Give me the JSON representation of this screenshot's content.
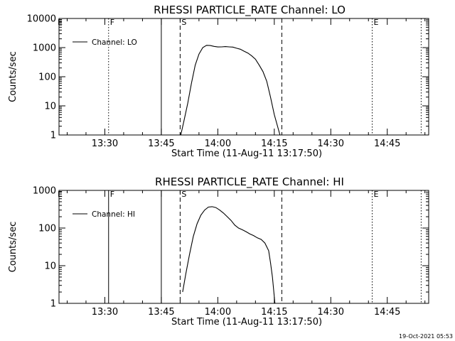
{
  "chart_data": [
    {
      "type": "line",
      "title": "RHESSI PARTICLE_RATE Channel: LO",
      "xlabel": "Start Time (11-Aug-11 13:17:50)",
      "ylabel": "Counts/sec",
      "yscale": "log",
      "xlim": [
        "13:17:50",
        "14:56:00"
      ],
      "ylim": [
        1,
        10000
      ],
      "x_ticks": [
        "13:30",
        "13:45",
        "14:00",
        "14:15",
        "14:30",
        "14:45"
      ],
      "y_ticks": [
        "1",
        "10",
        "100",
        "1000",
        "10000"
      ],
      "legend": {
        "entries": [
          "Channel: LO"
        ],
        "placement": "top-left"
      },
      "markers": [
        {
          "label": "F",
          "time": "13:31:00",
          "style": "dotted"
        },
        {
          "label": "",
          "time": "13:45:00",
          "style": "solid"
        },
        {
          "label": "S",
          "time": "13:50:00",
          "style": "dashed"
        },
        {
          "label": "",
          "time": "14:17:00",
          "style": "dashed"
        },
        {
          "label": "E",
          "time": "14:41:00",
          "style": "dotted"
        },
        {
          "label": "",
          "time": "14:54:00",
          "style": "dotted"
        }
      ],
      "series": [
        {
          "name": "Channel: LO",
          "x": [
            "13:50:10",
            "13:51:00",
            "13:52:00",
            "13:53:00",
            "13:54:00",
            "13:55:00",
            "13:56:00",
            "13:57:00",
            "13:58:00",
            "13:59:00",
            "14:00:00",
            "14:01:00",
            "14:02:00",
            "14:03:00",
            "14:04:00",
            "14:05:00",
            "14:06:00",
            "14:07:00",
            "14:08:00",
            "14:09:00",
            "14:10:00",
            "14:11:00",
            "14:12:00",
            "14:13:00",
            "14:14:00",
            "14:15:00",
            "14:16:30"
          ],
          "y": [
            1,
            3,
            12,
            60,
            250,
            600,
            1000,
            1200,
            1180,
            1100,
            1050,
            1060,
            1080,
            1060,
            1040,
            950,
            880,
            750,
            650,
            520,
            400,
            250,
            150,
            70,
            20,
            5,
            1
          ]
        }
      ]
    },
    {
      "type": "line",
      "title": "RHESSI PARTICLE_RATE Channel: HI",
      "xlabel": "Start Time (11-Aug-11 13:17:50)",
      "ylabel": "Counts/sec",
      "yscale": "log",
      "xlim": [
        "13:17:50",
        "14:56:00"
      ],
      "ylim": [
        1,
        1000
      ],
      "x_ticks": [
        "13:30",
        "13:45",
        "14:00",
        "14:15",
        "14:30",
        "14:45"
      ],
      "y_ticks": [
        "1",
        "10",
        "100",
        "1000"
      ],
      "legend": {
        "entries": [
          "Channel: HI"
        ],
        "placement": "top-left"
      },
      "markers": [
        {
          "label": "F",
          "time": "13:31:00",
          "style": "solid"
        },
        {
          "label": "",
          "time": "13:45:00",
          "style": "solid"
        },
        {
          "label": "S",
          "time": "13:50:00",
          "style": "dashed"
        },
        {
          "label": "",
          "time": "14:17:00",
          "style": "dashed"
        },
        {
          "label": "E",
          "time": "14:41:00",
          "style": "dotted"
        },
        {
          "label": "",
          "time": "14:54:00",
          "style": "dotted"
        }
      ],
      "series": [
        {
          "name": "Channel: HI",
          "x": [
            "13:50:40",
            "13:51:30",
            "13:52:30",
            "13:53:30",
            "13:54:30",
            "13:55:30",
            "13:56:30",
            "13:57:30",
            "13:58:30",
            "13:59:30",
            "14:00:30",
            "14:01:30",
            "14:02:30",
            "14:03:30",
            "14:04:30",
            "14:05:30",
            "14:06:30",
            "14:07:30",
            "14:08:30",
            "14:09:30",
            "14:10:30",
            "14:11:30",
            "14:12:30",
            "14:13:30",
            "14:14:00",
            "14:14:30",
            "14:15:10"
          ],
          "y": [
            2,
            6,
            20,
            60,
            130,
            220,
            300,
            360,
            370,
            350,
            300,
            250,
            200,
            160,
            120,
            100,
            90,
            80,
            70,
            63,
            55,
            50,
            40,
            25,
            12,
            5,
            1
          ]
        }
      ]
    }
  ],
  "timestamp": "19-Oct-2021 05:53"
}
